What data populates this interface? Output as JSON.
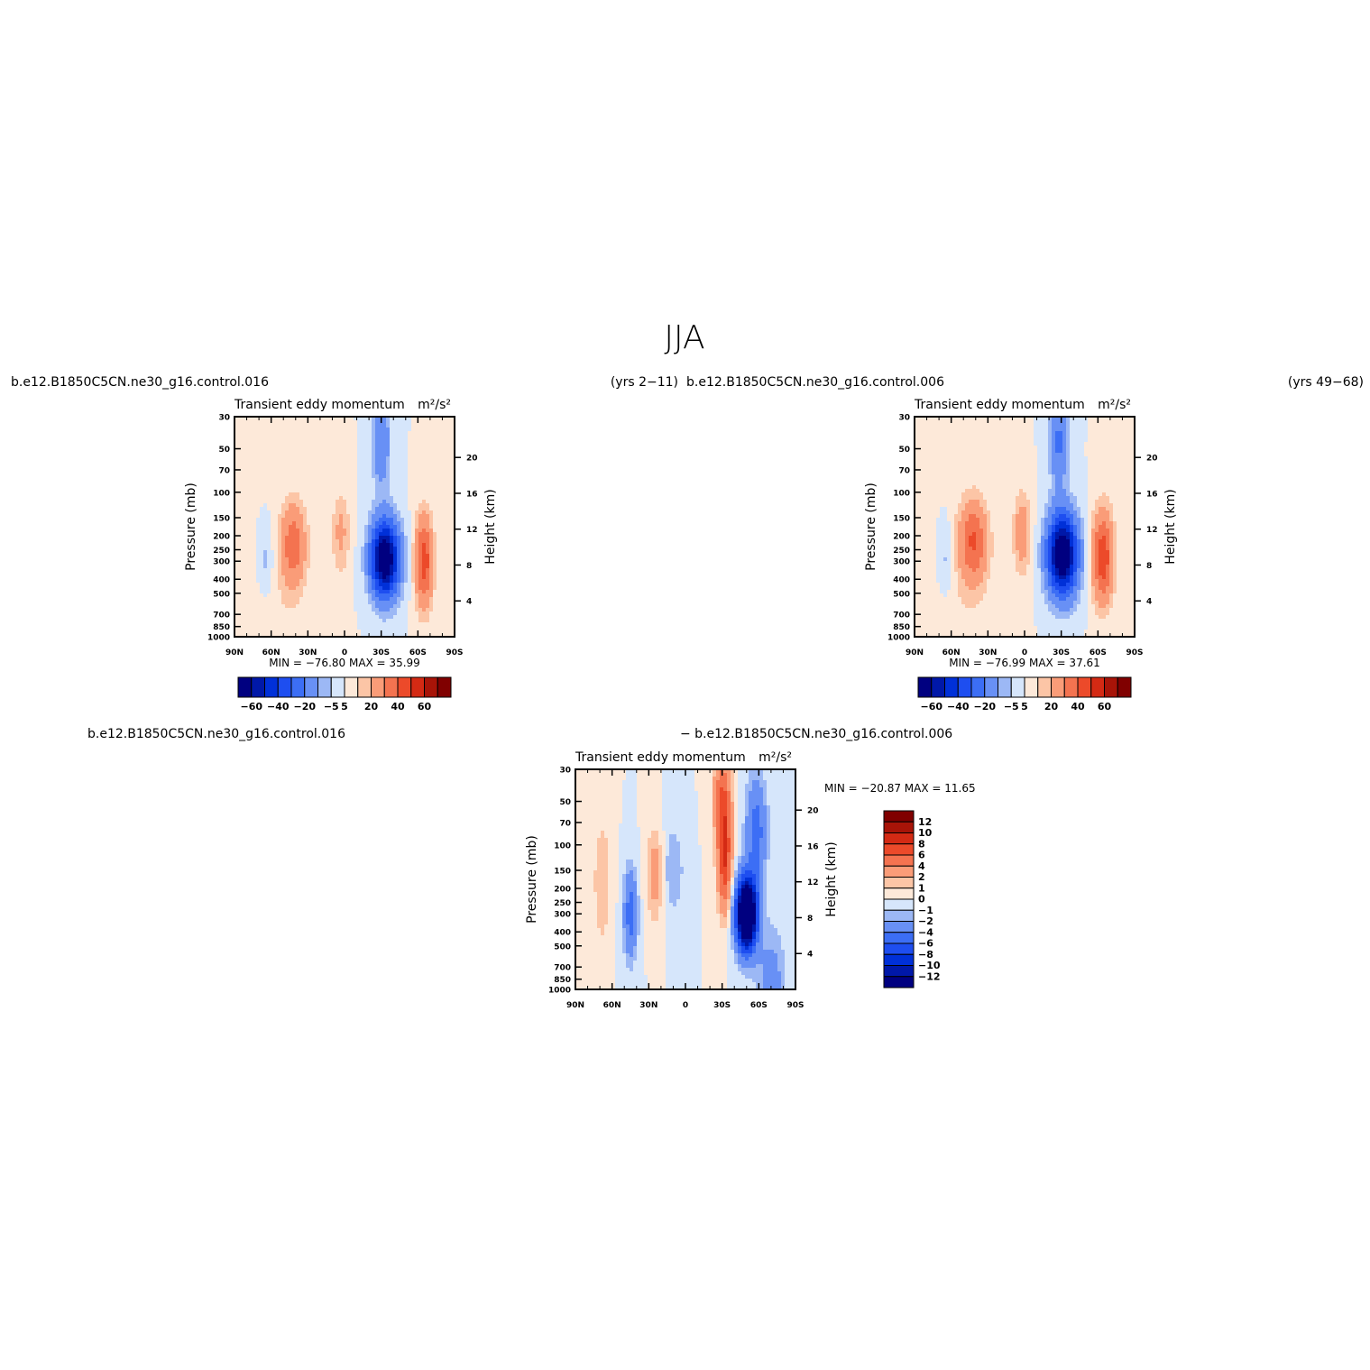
{
  "page": {
    "title": "JJA",
    "top_left_case": "b.e12.B1850C5CN.ne30_g16.control.016",
    "top_left_years": "(yrs 2−11)",
    "top_right_case": "b.e12.B1850C5CN.ne30_g16.control.006",
    "top_right_years": "(yrs 49−68)",
    "bottom_case_a": "b.e12.B1850C5CN.ne30_g16.control.016",
    "bottom_case_b": "− b.e12.B1850C5CN.ne30_g16.control.006"
  },
  "palettes": {
    "main": [
      "#000080",
      "#0018a8",
      "#0030d8",
      "#1e4ef0",
      "#3c6ef5",
      "#6890f5",
      "#9cb8f5",
      "#d6e6fb",
      "#fde9d9",
      "#fcc5a6",
      "#fa9c78",
      "#f47350",
      "#ec4a2a",
      "#d42a14",
      "#a81408",
      "#800000"
    ],
    "diff": [
      "#000080",
      "#0018a8",
      "#0030d8",
      "#1e4ef0",
      "#3c6ef5",
      "#6890f5",
      "#9cb8f5",
      "#d6e6fb",
      "#fde9d9",
      "#fcc5a6",
      "#fa9c78",
      "#f47350",
      "#ec4a2a",
      "#d42a14",
      "#a81408",
      "#800000"
    ]
  },
  "chart_data": [
    {
      "type": "heatmap",
      "title": "Transient eddy momentum",
      "units": "m²/s²",
      "ylabel": "Pressure (mb)",
      "ylabel_right": "Height (km)",
      "x_ticks": [
        "90N",
        "60N",
        "30N",
        "0",
        "30S",
        "60S",
        "90S"
      ],
      "y_ticks": [
        30,
        50,
        70,
        100,
        150,
        200,
        250,
        300,
        400,
        500,
        700,
        850,
        1000
      ],
      "y_right_ticks": [
        4,
        8,
        12,
        16,
        20
      ],
      "minmax_text": "MIN = −76.80   MAX =   35.99",
      "min": -76.8,
      "max": 35.99,
      "levels": [
        -60,
        -50,
        -40,
        -30,
        -20,
        -10,
        -5,
        0,
        5,
        10,
        20,
        30,
        40,
        50,
        60
      ],
      "colorbar_labels": [
        "−60",
        "−40",
        "−20",
        "−5",
        "5",
        "20",
        "40",
        "60"
      ],
      "features": [
        {
          "lat": -33,
          "p": 290,
          "amp": -76.8,
          "slat": 8,
          "sp": 0.42
        },
        {
          "lat": -30,
          "p": 45,
          "amp": -20,
          "slat": 5,
          "sp": 0.5
        },
        {
          "lat": -65,
          "p": 300,
          "amp": 35.99,
          "slat": 5,
          "sp": 0.5
        },
        {
          "lat": 42,
          "p": 230,
          "amp": 26,
          "slat": 7,
          "sp": 0.45
        },
        {
          "lat": 3,
          "p": 190,
          "amp": 12,
          "slat": 5,
          "sp": 0.45
        },
        {
          "lat": 65,
          "p": 300,
          "amp": -8,
          "slat": 5,
          "sp": 0.45
        },
        {
          "lat": 60,
          "p": 900,
          "amp": 4,
          "slat": 25,
          "sp": 1.2
        }
      ]
    },
    {
      "type": "heatmap",
      "title": "Transient eddy momentum",
      "units": "m²/s²",
      "ylabel": "Pressure (mb)",
      "ylabel_right": "Height (km)",
      "x_ticks": [
        "90N",
        "60N",
        "30N",
        "0",
        "30S",
        "60S",
        "90S"
      ],
      "y_ticks": [
        30,
        50,
        70,
        100,
        150,
        200,
        250,
        300,
        400,
        500,
        700,
        850,
        1000
      ],
      "y_right_ticks": [
        4,
        8,
        12,
        16,
        20
      ],
      "minmax_text": "MIN = −76.99   MAX =   37.61",
      "min": -76.99,
      "max": 37.61,
      "levels": [
        -60,
        -50,
        -40,
        -30,
        -20,
        -10,
        -5,
        0,
        5,
        10,
        20,
        30,
        40,
        50,
        60
      ],
      "colorbar_labels": [
        "−60",
        "−40",
        "−20",
        "−5",
        "5",
        "20",
        "40",
        "60"
      ],
      "features": [
        {
          "lat": -31,
          "p": 270,
          "amp": -76.99,
          "slat": 8.5,
          "sp": 0.45
        },
        {
          "lat": -28,
          "p": 45,
          "amp": -22,
          "slat": 5,
          "sp": 0.5
        },
        {
          "lat": -64,
          "p": 280,
          "amp": 37.61,
          "slat": 6,
          "sp": 0.5
        },
        {
          "lat": 42,
          "p": 220,
          "amp": 30,
          "slat": 8,
          "sp": 0.45
        },
        {
          "lat": 2,
          "p": 190,
          "amp": 16,
          "slat": 5,
          "sp": 0.45
        },
        {
          "lat": 65,
          "p": 300,
          "amp": -8,
          "slat": 5,
          "sp": 0.45
        },
        {
          "lat": 60,
          "p": 900,
          "amp": 4,
          "slat": 25,
          "sp": 1.2
        }
      ]
    },
    {
      "type": "heatmap",
      "title": "Transient eddy momentum",
      "units": "m²/s²",
      "ylabel": "Pressure (mb)",
      "ylabel_right": "Height (km)",
      "x_ticks": [
        "90N",
        "60N",
        "30N",
        "0",
        "30S",
        "60S",
        "90S"
      ],
      "y_ticks": [
        30,
        50,
        70,
        100,
        150,
        200,
        250,
        300,
        400,
        500,
        700,
        850,
        1000
      ],
      "y_right_ticks": [
        4,
        8,
        12,
        16,
        20
      ],
      "minmax_text": "MIN = −20.87   MAX =   11.65",
      "min": -20.87,
      "max": 11.65,
      "levels": [
        -12,
        -10,
        -8,
        -6,
        -4,
        -2,
        -1,
        0,
        1,
        2,
        4,
        6,
        8,
        10,
        12
      ],
      "colorbar_labels": [
        "12",
        "10",
        "8",
        "6",
        "4",
        "2",
        "1",
        "0",
        "−1",
        "−2",
        "−4",
        "−6",
        "−8",
        "−10",
        "−12"
      ],
      "features": [
        {
          "lat": -50,
          "p": 300,
          "amp": -20.87,
          "slat": 6,
          "sp": 0.4
        },
        {
          "lat": -58,
          "p": 80,
          "amp": -5,
          "slat": 6,
          "sp": 0.6
        },
        {
          "lat": -32,
          "p": 120,
          "amp": 8,
          "slat": 4,
          "sp": 0.6
        },
        {
          "lat": -30,
          "p": 45,
          "amp": 5,
          "slat": 5,
          "sp": 0.5
        },
        {
          "lat": 45,
          "p": 300,
          "amp": -5,
          "slat": 4,
          "sp": 0.5
        },
        {
          "lat": 25,
          "p": 160,
          "amp": 3,
          "slat": 5,
          "sp": 0.5
        },
        {
          "lat": 68,
          "p": 180,
          "amp": 2,
          "slat": 5,
          "sp": 0.7
        },
        {
          "lat": 10,
          "p": 150,
          "amp": -2,
          "slat": 6,
          "sp": 0.5
        },
        {
          "lat": -70,
          "p": 900,
          "amp": -3,
          "slat": 8,
          "sp": 0.6
        }
      ]
    }
  ]
}
